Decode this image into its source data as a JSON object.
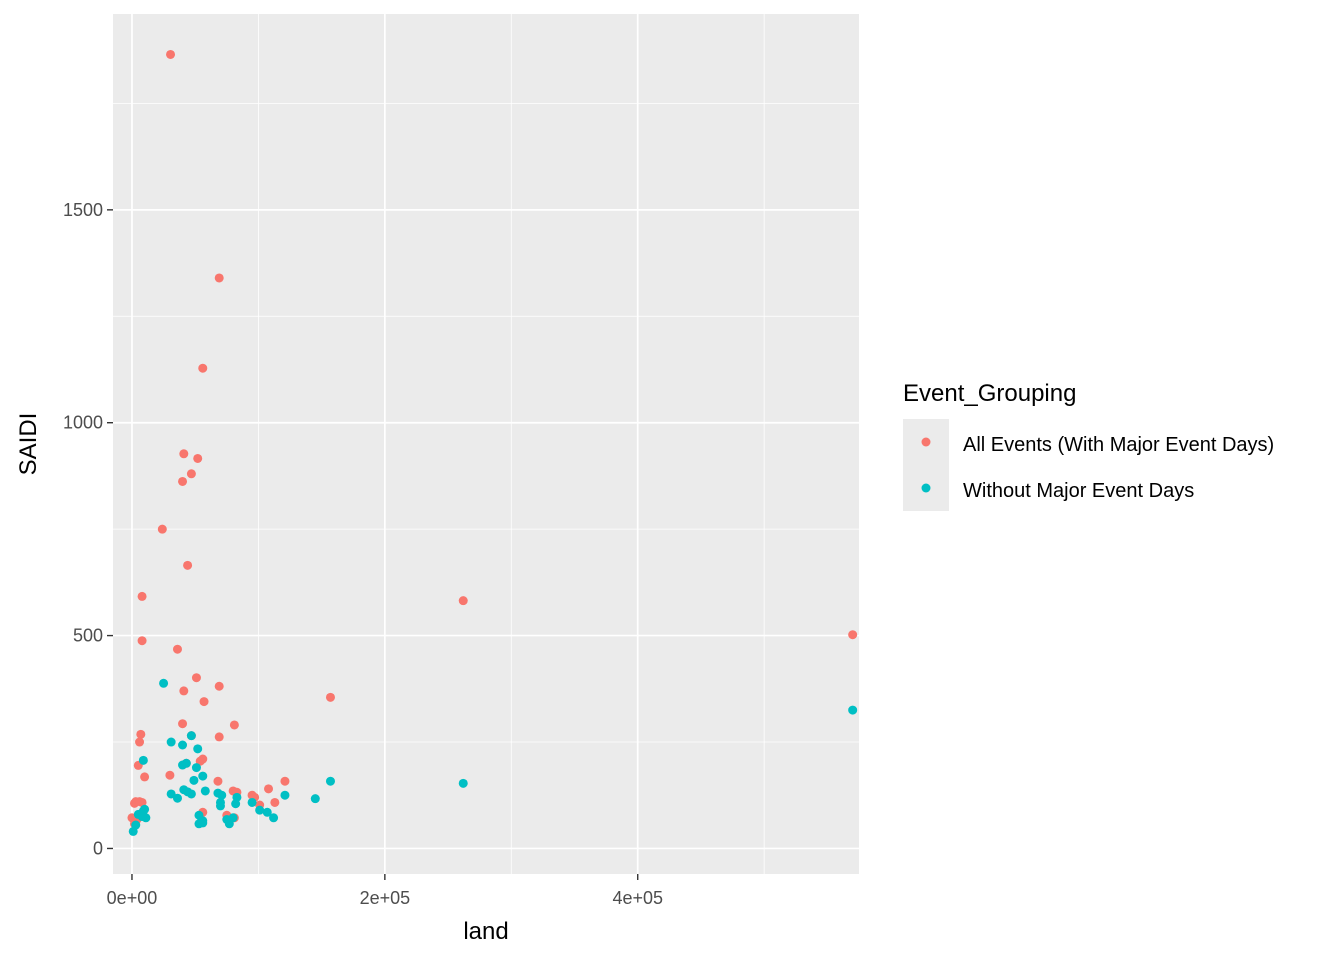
{
  "chart_data": {
    "type": "scatter",
    "xlabel": "land",
    "ylabel": "SAIDI",
    "xlim": [
      -15000,
      575000
    ],
    "ylim": [
      -60,
      1960
    ],
    "x_ticks": [
      0,
      200000,
      400000
    ],
    "x_tick_labels": [
      "0e+00",
      "2e+05",
      "4e+05"
    ],
    "y_ticks": [
      0,
      500,
      1000,
      1500
    ],
    "y_tick_labels": [
      "0",
      "500",
      "1000",
      "1500"
    ],
    "grid": true,
    "panel_background": "#ebebeb",
    "legend_position": "right",
    "legend_title": "Event_Grouping",
    "series": [
      {
        "name": "All Events (With Major Event Days)",
        "color": "#F8766D",
        "points": [
          [
            30500,
            1865
          ],
          [
            69000,
            1340
          ],
          [
            56000,
            1128
          ],
          [
            41000,
            927
          ],
          [
            52000,
            916
          ],
          [
            47000,
            880
          ],
          [
            40000,
            862
          ],
          [
            24000,
            750
          ],
          [
            44000,
            665
          ],
          [
            8000,
            592
          ],
          [
            262000,
            582
          ],
          [
            570000,
            502
          ],
          [
            8000,
            488
          ],
          [
            36000,
            468
          ],
          [
            51000,
            401
          ],
          [
            69000,
            381
          ],
          [
            41000,
            370
          ],
          [
            157000,
            355
          ],
          [
            57000,
            345
          ],
          [
            40000,
            293
          ],
          [
            81000,
            290
          ],
          [
            7000,
            268
          ],
          [
            47000,
            265
          ],
          [
            69000,
            262
          ],
          [
            6000,
            250
          ],
          [
            5000,
            195
          ],
          [
            43000,
            200
          ],
          [
            54000,
            205
          ],
          [
            56000,
            210
          ],
          [
            10000,
            168
          ],
          [
            30000,
            172
          ],
          [
            68000,
            158
          ],
          [
            121000,
            158
          ],
          [
            80000,
            135
          ],
          [
            83000,
            132
          ],
          [
            108000,
            140
          ],
          [
            95000,
            125
          ],
          [
            97000,
            120
          ],
          [
            113000,
            108
          ],
          [
            101000,
            102
          ],
          [
            2000,
            106
          ],
          [
            3000,
            110
          ],
          [
            6000,
            110
          ],
          [
            8000,
            108
          ],
          [
            56000,
            85
          ],
          [
            75000,
            78
          ],
          [
            81000,
            72
          ],
          [
            0,
            72
          ],
          [
            4000,
            68
          ],
          [
            2000,
            58
          ]
        ]
      },
      {
        "name": "Without Major Event Days",
        "color": "#00BFC4",
        "points": [
          [
            570000,
            325
          ],
          [
            25000,
            388
          ],
          [
            47000,
            265
          ],
          [
            31000,
            250
          ],
          [
            40000,
            243
          ],
          [
            52000,
            234
          ],
          [
            9000,
            207
          ],
          [
            43000,
            200
          ],
          [
            40000,
            196
          ],
          [
            51000,
            190
          ],
          [
            56000,
            170
          ],
          [
            157000,
            158
          ],
          [
            262000,
            153
          ],
          [
            49000,
            160
          ],
          [
            58000,
            135
          ],
          [
            41000,
            138
          ],
          [
            44000,
            133
          ],
          [
            31000,
            128
          ],
          [
            36000,
            118
          ],
          [
            47000,
            128
          ],
          [
            68000,
            130
          ],
          [
            71000,
            125
          ],
          [
            83000,
            120
          ],
          [
            121000,
            125
          ],
          [
            145000,
            117
          ],
          [
            70000,
            108
          ],
          [
            82000,
            105
          ],
          [
            70000,
            100
          ],
          [
            95000,
            108
          ],
          [
            10000,
            92
          ],
          [
            9000,
            88
          ],
          [
            101000,
            90
          ],
          [
            107000,
            85
          ],
          [
            112000,
            72
          ],
          [
            5000,
            80
          ],
          [
            8000,
            75
          ],
          [
            11000,
            72
          ],
          [
            53000,
            78
          ],
          [
            56000,
            65
          ],
          [
            75000,
            68
          ],
          [
            80000,
            72
          ],
          [
            53000,
            58
          ],
          [
            77000,
            58
          ],
          [
            3000,
            55
          ],
          [
            1000,
            40
          ],
          [
            56000,
            60
          ]
        ]
      }
    ]
  }
}
